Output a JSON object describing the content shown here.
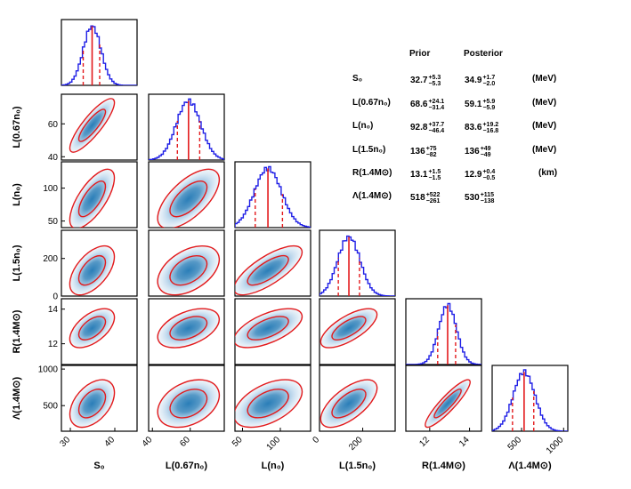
{
  "chart_data": {
    "type": "corner",
    "parameters": [
      {
        "label": "S₀",
        "range": [
          28,
          45
        ],
        "ticks": [
          30,
          40
        ],
        "median": 34.9,
        "lo": 32.9,
        "hi": 36.6,
        "sd": 2.0
      },
      {
        "label": "L(0.67n₀)",
        "range": [
          38,
          78
        ],
        "ticks": [
          40,
          60
        ],
        "median": 59.1,
        "lo": 53.2,
        "hi": 65.0,
        "sd": 6.5
      },
      {
        "label": "L(n₀)",
        "range": [
          40,
          140
        ],
        "ticks": [
          50,
          100
        ],
        "median": 83.6,
        "lo": 66.8,
        "hi": 102.8,
        "sd": 18.0
      },
      {
        "label": "L(1.5n₀)",
        "range": [
          0,
          350
        ],
        "ticks": [
          0,
          200
        ],
        "median": 136,
        "lo": 87,
        "hi": 185,
        "sd": 52
      },
      {
        "label": "R(1.4M⊙)",
        "range": [
          10.8,
          14.6
        ],
        "ticks": [
          12,
          14
        ],
        "median": 12.9,
        "lo": 12.4,
        "hi": 13.3,
        "sd": 0.45
      },
      {
        "label": "Λ(1.4M⊙)",
        "range": [
          150,
          1050
        ],
        "ticks": [
          500,
          1000
        ],
        "median": 530,
        "lo": 392,
        "hi": 645,
        "sd": 130
      }
    ],
    "hist_y_ticks": {
      "1": [
        40,
        60
      ],
      "2": [
        50,
        100
      ],
      "3": [
        0,
        200
      ],
      "4": [
        12,
        14
      ],
      "5": [
        500,
        1000
      ]
    },
    "correlations": [
      [
        0,
        0.85,
        0.7,
        0.55,
        0.55,
        0.45
      ],
      [
        0.85,
        0,
        0.65,
        0.45,
        0.45,
        0.35
      ],
      [
        0.7,
        0.65,
        0,
        0.75,
        0.6,
        0.5
      ],
      [
        0.55,
        0.45,
        0.75,
        0,
        0.7,
        0.65
      ],
      [
        0.55,
        0.45,
        0.6,
        0.7,
        0,
        0.9
      ],
      [
        0.45,
        0.35,
        0.5,
        0.65,
        0.9,
        0
      ]
    ],
    "table": {
      "headers": {
        "prior": "Prior",
        "posterior": "Posterior"
      },
      "rows": [
        {
          "label": "S₀",
          "prior": {
            "v": "32.7",
            "up": "+5.3",
            "dn": "−5.3"
          },
          "post": {
            "v": "34.9",
            "up": "+1.7",
            "dn": "−2.0"
          },
          "unit": "(MeV)"
        },
        {
          "label": "L(0.67n₀)",
          "prior": {
            "v": "68.6",
            "up": "+24.1",
            "dn": "−31.4"
          },
          "post": {
            "v": "59.1",
            "up": "+5.9",
            "dn": "−5.9"
          },
          "unit": "(MeV)"
        },
        {
          "label": "L(n₀)",
          "prior": {
            "v": "92.8",
            "up": "+37.7",
            "dn": "−46.4"
          },
          "post": {
            "v": "83.6",
            "up": "+19.2",
            "dn": "−16.8"
          },
          "unit": "(MeV)"
        },
        {
          "label": "L(1.5n₀)",
          "prior": {
            "v": "136",
            "up": "+75",
            "dn": "−82"
          },
          "post": {
            "v": "136",
            "up": "+49",
            "dn": "−49"
          },
          "unit": "(MeV)"
        },
        {
          "label": "R(1.4M⊙)",
          "prior": {
            "v": "13.1",
            "up": "+1.5",
            "dn": "−1.5"
          },
          "post": {
            "v": "12.9",
            "up": "+0.4",
            "dn": "−0.5"
          },
          "unit": "(km)"
        },
        {
          "label": "Λ(1.4M⊙)",
          "prior": {
            "v": "518",
            "up": "+522",
            "dn": "−261"
          },
          "post": {
            "v": "530",
            "up": "+115",
            "dn": "−138"
          },
          "unit": ""
        }
      ]
    }
  },
  "colors": {
    "hist": "#1f1fe6",
    "median": "#e31a1c",
    "contour": "#e31a1c",
    "density": "#1f77b4",
    "frame": "#000000"
  }
}
